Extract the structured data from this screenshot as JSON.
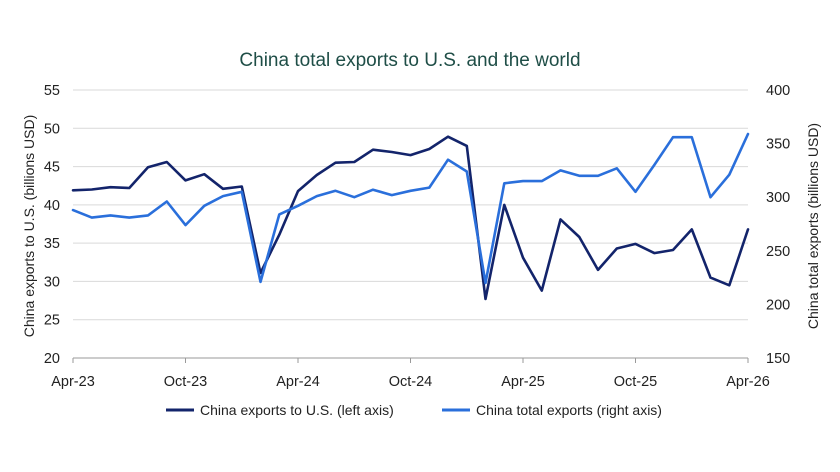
{
  "chart_data": {
    "type": "line",
    "title": "China total exports to U.S. and the world",
    "ylabel_left": "China exports to U.S. (billions USD)",
    "ylabel_right": "China total exports (billions USD)",
    "ylim_left": [
      20,
      55
    ],
    "yticks_left": [
      20,
      25,
      30,
      35,
      40,
      45,
      50,
      55
    ],
    "ylim_right": [
      150,
      400
    ],
    "yticks_right": [
      150,
      200,
      250,
      300,
      350,
      400
    ],
    "x_range": [
      "Apr-23",
      "Apr-26"
    ],
    "xticks": [
      "Apr-23",
      "Oct-23",
      "Apr-24",
      "Oct-24",
      "Apr-25",
      "Oct-25",
      "Apr-26"
    ],
    "grid": "horizontal",
    "legend_position": "bottom",
    "colors": {
      "us": "#13246b",
      "world": "#2a6fdb",
      "title": "#1f4e47"
    },
    "series": [
      {
        "name": "China exports to U.S. (left axis)",
        "axis": "left",
        "x": [
          "Apr-23",
          "May-23",
          "Jun-23",
          "Jul-23",
          "Aug-23",
          "Sep-23",
          "Oct-23",
          "Nov-23",
          "Dec-23",
          "Jan-24",
          "Feb-24",
          "Mar-24",
          "Apr-24",
          "May-24",
          "Jun-24",
          "Jul-24",
          "Aug-24",
          "Sep-24",
          "Oct-24",
          "Nov-24",
          "Dec-24",
          "Jan-25",
          "Feb-25",
          "Mar-25",
          "Apr-25",
          "May-25",
          "Jun-25",
          "Jul-25",
          "Aug-25",
          "Sep-25",
          "Oct-25",
          "Nov-25",
          "Dec-25",
          "Jan-26",
          "Feb-26",
          "Mar-26",
          "Apr-26"
        ],
        "values": [
          41.9,
          42.0,
          42.3,
          42.2,
          44.9,
          45.6,
          43.2,
          44.0,
          42.1,
          42.4,
          31.1,
          36.1,
          41.8,
          43.9,
          45.5,
          45.6,
          47.2,
          46.9,
          46.5,
          47.3,
          48.9,
          47.7,
          27.7,
          40.0,
          33.1,
          28.8,
          38.1,
          35.8,
          31.5,
          34.3,
          34.9,
          33.7,
          34.1,
          36.8,
          30.5,
          29.5,
          36.8
        ]
      },
      {
        "name": "China total exports (right axis)",
        "axis": "right",
        "x": [
          "Apr-23",
          "May-23",
          "Jun-23",
          "Jul-23",
          "Aug-23",
          "Sep-23",
          "Oct-23",
          "Nov-23",
          "Dec-23",
          "Jan-24",
          "Feb-24",
          "Mar-24",
          "Apr-24",
          "May-24",
          "Jun-24",
          "Jul-24",
          "Aug-24",
          "Sep-24",
          "Oct-24",
          "Nov-24",
          "Dec-24",
          "Jan-25",
          "Feb-25",
          "Mar-25",
          "Apr-25",
          "May-25",
          "Jun-25",
          "Jul-25",
          "Aug-25",
          "Sep-25",
          "Oct-25",
          "Nov-25",
          "Dec-25",
          "Jan-26",
          "Feb-26",
          "Mar-26",
          "Apr-26"
        ],
        "values": [
          288,
          281,
          283,
          281,
          283,
          296,
          274,
          292,
          301,
          305,
          221,
          284,
          292,
          301,
          306,
          300,
          307,
          302,
          306,
          309,
          335,
          324,
          220,
          313,
          315,
          315,
          325,
          320,
          320,
          327,
          305,
          330,
          356,
          356,
          300,
          321,
          359
        ]
      }
    ]
  }
}
